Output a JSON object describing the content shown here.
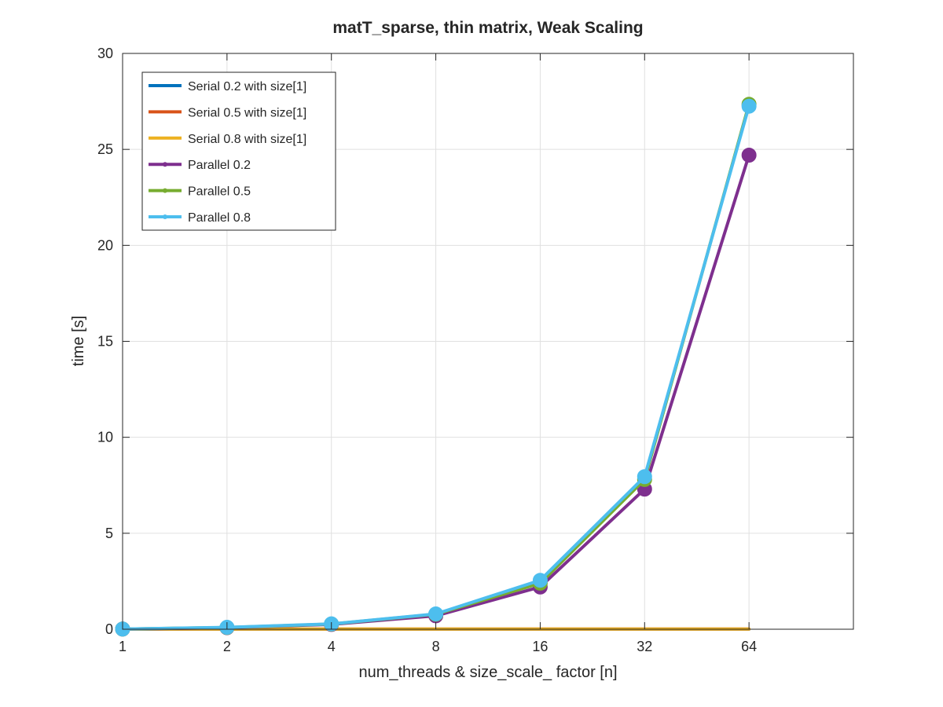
{
  "chart_data": {
    "type": "line",
    "title": "matT_sparse, thin matrix, Weak Scaling",
    "xlabel": "num_threads & size_scale_ factor [n]",
    "ylabel": "time [s]",
    "x_scale": "log2",
    "x": [
      1,
      2,
      4,
      8,
      16,
      32,
      64
    ],
    "xticks": [
      "1",
      "2",
      "4",
      "8",
      "16",
      "32",
      "64"
    ],
    "xlim": [
      1,
      128
    ],
    "ylim": [
      0,
      30
    ],
    "yticks": [
      "0",
      "5",
      "10",
      "15",
      "20",
      "25",
      "30"
    ],
    "grid": true,
    "legend_location": "top-left",
    "series": [
      {
        "name": "Serial 0.2 with size[1]",
        "color": "#0072BD",
        "markers": false,
        "values": [
          0.005,
          0.005,
          0.005,
          0.005,
          0.005,
          0.005,
          0.005
        ]
      },
      {
        "name": "Serial 0.5 with size[1]",
        "color": "#D95319",
        "markers": false,
        "values": [
          0.008,
          0.008,
          0.008,
          0.008,
          0.008,
          0.008,
          0.008
        ]
      },
      {
        "name": "Serial 0.8 with size[1]",
        "color": "#EDB120",
        "markers": false,
        "values": [
          0.01,
          0.01,
          0.01,
          0.01,
          0.01,
          0.01,
          0.01
        ]
      },
      {
        "name": "Parallel 0.2",
        "color": "#7E2F8E",
        "markers": true,
        "values": [
          0.01,
          0.08,
          0.25,
          0.7,
          2.2,
          7.3,
          24.7
        ]
      },
      {
        "name": "Parallel 0.5",
        "color": "#77AC30",
        "markers": true,
        "values": [
          0.01,
          0.09,
          0.27,
          0.78,
          2.4,
          7.8,
          27.35
        ]
      },
      {
        "name": "Parallel 0.8",
        "color": "#4DBEEE",
        "markers": true,
        "values": [
          0.01,
          0.1,
          0.28,
          0.8,
          2.55,
          7.95,
          27.25
        ]
      }
    ]
  }
}
